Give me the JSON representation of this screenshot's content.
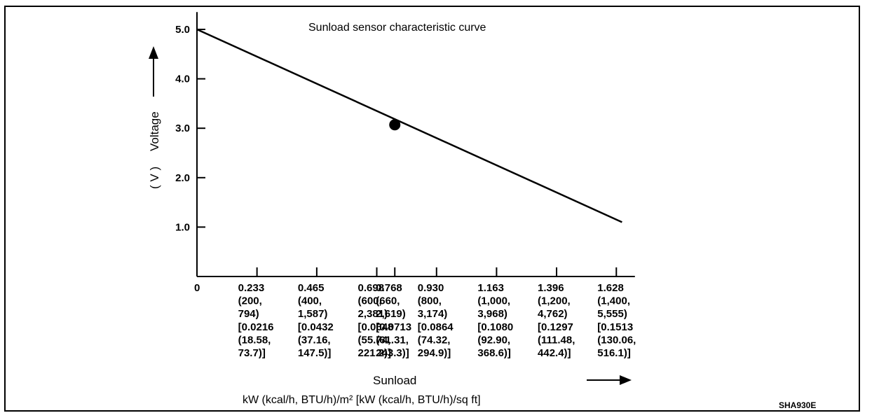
{
  "chart_data": {
    "type": "line",
    "title": "Sunload sensor characteristic curve",
    "xlabel": "Sunload",
    "x_units": "kW (kcal/h, BTU/h)/m²  [kW (kcal/h, BTU/h)/sq ft]",
    "ylabel": "Voltage",
    "y_units": "( V )",
    "ylim": [
      0,
      5.0
    ],
    "xlim": [
      0,
      1.7
    ],
    "yticks": [
      "1.0",
      "2.0",
      "3.0",
      "4.0",
      "5.0"
    ],
    "xticks": [
      {
        "value": 0,
        "lines": [
          "0"
        ]
      },
      {
        "value": 0.233,
        "lines": [
          "0.233",
          "(200,",
          "794)",
          "[0.0216",
          "(18.58,",
          "73.7)]"
        ]
      },
      {
        "value": 0.465,
        "lines": [
          "0.465",
          "(400,",
          "1,587)",
          "[0.0432",
          "(37.16,",
          "147.5)]"
        ]
      },
      {
        "value": 0.698,
        "lines": [
          "0.698",
          "(600,",
          "2,381)",
          "[0.0648",
          "(55.74,",
          "221.2)]"
        ]
      },
      {
        "value": 0.768,
        "lines": [
          "0.768",
          "(660,",
          "2,619)",
          "[0.0713",
          "(61.31,",
          "243.3)]"
        ]
      },
      {
        "value": 0.93,
        "lines": [
          "0.930",
          "(800,",
          "3,174)",
          "[0.0864",
          "(74.32,",
          "294.9)]"
        ]
      },
      {
        "value": 1.163,
        "lines": [
          "1.163",
          "(1,000,",
          "3,968)",
          "[0.1080",
          "(92.90,",
          "368.6)]"
        ]
      },
      {
        "value": 1.396,
        "lines": [
          "1.396",
          "(1,200,",
          "4,762)",
          "[0.1297",
          "(111.48,",
          "442.4)]"
        ]
      },
      {
        "value": 1.628,
        "lines": [
          "1.628",
          "(1,400,",
          "5,555)",
          "[0.1513",
          "(130.06,",
          "516.1)]"
        ]
      }
    ],
    "series": [
      {
        "x": [
          0,
          1.65
        ],
        "y": [
          5.0,
          1.1
        ]
      }
    ],
    "marker": {
      "x": 0.768,
      "y": 3.07
    },
    "grid": false,
    "legend": "none"
  },
  "figure_code": "SHA930E"
}
